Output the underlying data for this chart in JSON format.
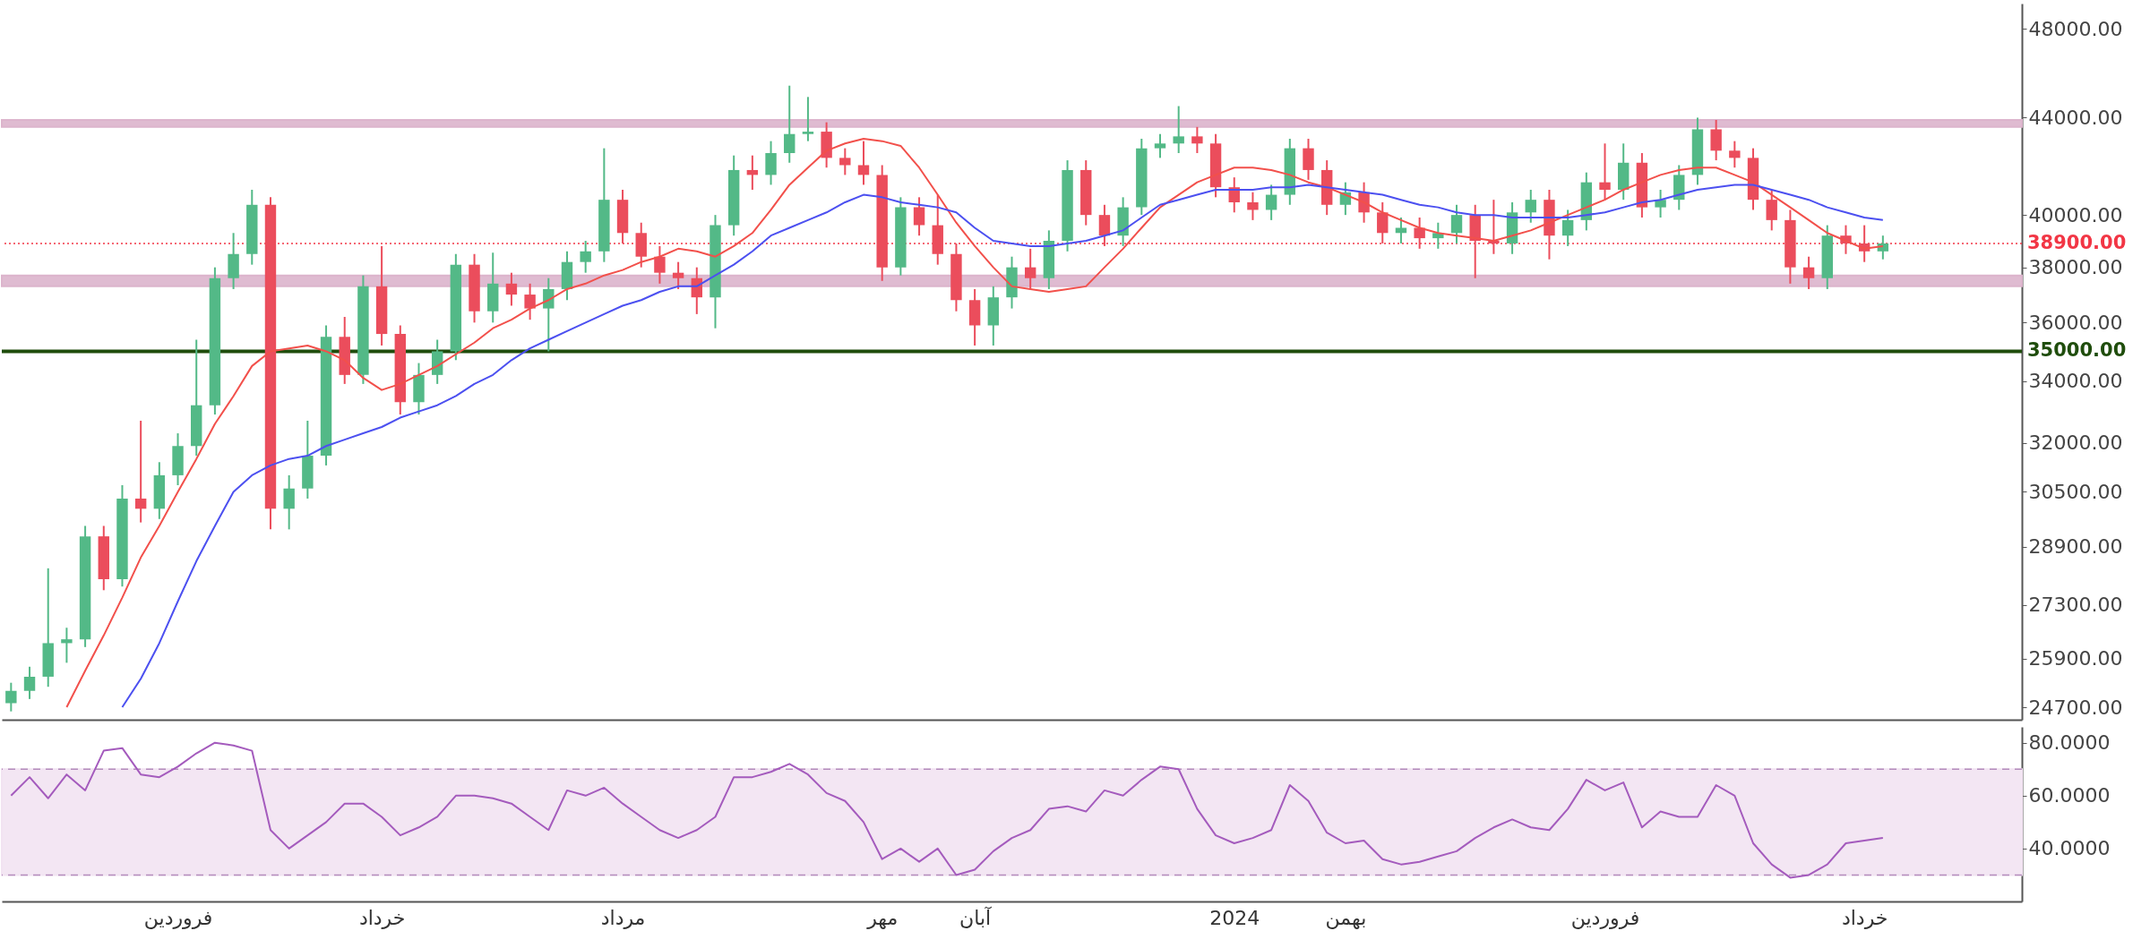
{
  "chart_data": [
    {
      "type": "candlestick",
      "tick_labels": "y",
      "log": true,
      "grid": false,
      "categories": [
        null,
        null,
        null,
        null,
        null,
        null,
        null,
        null,
        null,
        null,
        null,
        null,
        null,
        null,
        null,
        null,
        null,
        null,
        null,
        null,
        null,
        null,
        null,
        null,
        null,
        null,
        null,
        null,
        null,
        null,
        null,
        null,
        null,
        null,
        null,
        null,
        null,
        null,
        null,
        null,
        null,
        null,
        null,
        null,
        null,
        null,
        null,
        null,
        null,
        null,
        null,
        null,
        null,
        null,
        null,
        null,
        null,
        null,
        null,
        null,
        null,
        null,
        null,
        null,
        null,
        null,
        null,
        null,
        null,
        null,
        null,
        null,
        null,
        null,
        null,
        null,
        null,
        null,
        null,
        null,
        null,
        null,
        null,
        null,
        null,
        null,
        null,
        null,
        null,
        null,
        null,
        null,
        null,
        null,
        null,
        null,
        null,
        null,
        null,
        null,
        null,
        null,
        null,
        null,
        null,
        null,
        null,
        null,
        null
      ],
      "ohlc": [
        [
          24800,
          25300,
          24600,
          25100
        ],
        [
          25100,
          25700,
          24900,
          25450
        ],
        [
          25450,
          28300,
          25200,
          26300
        ],
        [
          26300,
          26700,
          25800,
          26400
        ],
        [
          26400,
          29500,
          26200,
          29200
        ],
        [
          29200,
          29500,
          27700,
          28000
        ],
        [
          28000,
          30700,
          27800,
          30300
        ],
        [
          30300,
          32700,
          29600,
          30000
        ],
        [
          30000,
          31400,
          29700,
          31000
        ],
        [
          31000,
          32300,
          30700,
          31900
        ],
        [
          31900,
          35400,
          31600,
          33200
        ],
        [
          33200,
          38000,
          32900,
          37600
        ],
        [
          37600,
          39300,
          37200,
          38500
        ],
        [
          38500,
          41000,
          38100,
          40400
        ],
        [
          40400,
          40700,
          29400,
          30000
        ],
        [
          30000,
          31000,
          29400,
          30600
        ],
        [
          30600,
          32700,
          30300,
          31600
        ],
        [
          31600,
          35900,
          31300,
          35500
        ],
        [
          35500,
          36200,
          33900,
          34200
        ],
        [
          34200,
          37700,
          33900,
          37300
        ],
        [
          37300,
          38800,
          35200,
          35600
        ],
        [
          35600,
          35900,
          32900,
          33300
        ],
        [
          33300,
          34600,
          32900,
          34200
        ],
        [
          34200,
          35400,
          33900,
          35000
        ],
        [
          35000,
          38500,
          34700,
          38100
        ],
        [
          38100,
          38500,
          36000,
          36400
        ],
        [
          36400,
          38550,
          36000,
          37400
        ],
        [
          37400,
          37800,
          36600,
          37000
        ],
        [
          37000,
          37400,
          36100,
          36500
        ],
        [
          36500,
          37600,
          35000,
          37200
        ],
        [
          37200,
          38600,
          36800,
          38200
        ],
        [
          38200,
          39000,
          37800,
          38600
        ],
        [
          38600,
          42700,
          38200,
          40600
        ],
        [
          40600,
          41000,
          38900,
          39300
        ],
        [
          39300,
          39700,
          38000,
          38400
        ],
        [
          38400,
          38800,
          37400,
          37800
        ],
        [
          37800,
          38200,
          37200,
          37600
        ],
        [
          37600,
          38000,
          36300,
          36900
        ],
        [
          36900,
          40000,
          35800,
          39600
        ],
        [
          39600,
          42400,
          39200,
          41800
        ],
        [
          41800,
          42400,
          41000,
          41600
        ],
        [
          41600,
          43000,
          41200,
          42500
        ],
        [
          42500,
          45400,
          42100,
          43300
        ],
        [
          43300,
          44900,
          43000,
          43400
        ],
        [
          43400,
          43800,
          41900,
          42300
        ],
        [
          42300,
          42700,
          41600,
          42000
        ],
        [
          42000,
          43000,
          41200,
          41600
        ],
        [
          41600,
          42000,
          37500,
          38000
        ],
        [
          38000,
          40700,
          37700,
          40300
        ],
        [
          40300,
          40700,
          39200,
          39600
        ],
        [
          39600,
          40800,
          38100,
          38500
        ],
        [
          38500,
          38900,
          36400,
          36800
        ],
        [
          36800,
          37200,
          35200,
          35900
        ],
        [
          35900,
          37300,
          35200,
          36900
        ],
        [
          36900,
          38400,
          36500,
          38000
        ],
        [
          38000,
          38700,
          37200,
          37600
        ],
        [
          37600,
          39400,
          37200,
          39000
        ],
        [
          39000,
          42200,
          38600,
          41800
        ],
        [
          41800,
          42200,
          39600,
          40000
        ],
        [
          40000,
          40400,
          38800,
          39200
        ],
        [
          39200,
          40700,
          38800,
          40300
        ],
        [
          40300,
          43100,
          40000,
          42700
        ],
        [
          42700,
          43300,
          42300,
          42900
        ],
        [
          42900,
          44500,
          42500,
          43200
        ],
        [
          43200,
          43600,
          42500,
          42900
        ],
        [
          42900,
          43300,
          40700,
          41100
        ],
        [
          41100,
          41500,
          40100,
          40500
        ],
        [
          40500,
          40900,
          39800,
          40200
        ],
        [
          40200,
          41200,
          39800,
          40800
        ],
        [
          40800,
          43100,
          40400,
          42700
        ],
        [
          42700,
          43100,
          41400,
          41800
        ],
        [
          41800,
          42200,
          40000,
          40400
        ],
        [
          40400,
          41300,
          40000,
          40900
        ],
        [
          40900,
          41300,
          39700,
          40100
        ],
        [
          40100,
          40500,
          38900,
          39300
        ],
        [
          39300,
          39900,
          38900,
          39500
        ],
        [
          39500,
          39900,
          38700,
          39100
        ],
        [
          39100,
          39700,
          38700,
          39300
        ],
        [
          39300,
          40400,
          38900,
          40000
        ],
        [
          40000,
          40400,
          37600,
          39000
        ],
        [
          39000,
          40600,
          38500,
          38900
        ],
        [
          38900,
          40500,
          38500,
          40100
        ],
        [
          40100,
          41000,
          39700,
          40600
        ],
        [
          40600,
          41000,
          38300,
          39200
        ],
        [
          39200,
          40200,
          38800,
          39800
        ],
        [
          39800,
          41700,
          39400,
          41300
        ],
        [
          41300,
          42900,
          40600,
          41000
        ],
        [
          41000,
          42900,
          40600,
          42100
        ],
        [
          42100,
          42500,
          39900,
          40300
        ],
        [
          40300,
          41000,
          39900,
          40600
        ],
        [
          40600,
          42000,
          40200,
          41600
        ],
        [
          41600,
          44000,
          41200,
          43500
        ],
        [
          43500,
          43900,
          42200,
          42600
        ],
        [
          42600,
          43000,
          41900,
          42300
        ],
        [
          42300,
          42700,
          40200,
          40600
        ],
        [
          40600,
          41000,
          39400,
          39800
        ],
        [
          39800,
          40200,
          37400,
          38000
        ],
        [
          38000,
          38400,
          37200,
          37600
        ],
        [
          37600,
          39600,
          37200,
          39200
        ],
        [
          39200,
          39600,
          38500,
          38900
        ],
        [
          38900,
          39600,
          38200,
          38600
        ],
        [
          38600,
          39200,
          38300,
          38900
        ],
        null,
        null,
        null,
        null,
        null,
        null,
        null
      ],
      "colors": [
        "#53b987",
        "#53b987",
        "#53b987",
        "#53b987",
        "#53b987",
        "#eb4d5c",
        "#53b987",
        "#eb4d5c",
        "#53b987",
        "#53b987",
        "#53b987",
        "#53b987",
        "#53b987",
        "#53b987",
        "#eb4d5c",
        "#53b987",
        "#53b987",
        "#53b987",
        "#eb4d5c",
        "#53b987",
        "#eb4d5c",
        "#eb4d5c",
        "#53b987",
        "#53b987",
        "#53b987",
        "#eb4d5c",
        "#53b987",
        "#eb4d5c",
        "#eb4d5c",
        "#53b987",
        "#53b987",
        "#53b987",
        "#53b987",
        "#eb4d5c",
        "#eb4d5c",
        "#eb4d5c",
        "#eb4d5c",
        "#eb4d5c",
        "#53b987",
        "#53b987",
        "#eb4d5c",
        "#53b987",
        "#53b987",
        "#53b987",
        "#eb4d5c",
        "#eb4d5c",
        "#eb4d5c",
        "#eb4d5c",
        "#53b987",
        "#eb4d5c",
        "#eb4d5c",
        "#eb4d5c",
        "#eb4d5c",
        "#53b987",
        "#53b987",
        "#eb4d5c",
        "#53b987",
        "#53b987",
        "#eb4d5c",
        "#eb4d5c",
        "#53b987",
        "#53b987",
        "#53b987",
        "#53b987",
        "#eb4d5c",
        "#eb4d5c",
        "#eb4d5c",
        "#eb4d5c",
        "#53b987",
        "#53b987",
        "#eb4d5c",
        "#eb4d5c",
        "#53b987",
        "#eb4d5c",
        "#eb4d5c",
        "#53b987",
        "#eb4d5c",
        "#53b987",
        "#53b987",
        "#eb4d5c",
        "#eb4d5c",
        "#53b987",
        "#53b987",
        "#eb4d5c",
        "#53b987",
        "#53b987",
        "#eb4d5c",
        "#53b987",
        "#eb4d5c",
        "#53b987",
        "#53b987",
        "#53b987",
        "#eb4d5c",
        "#eb4d5c",
        "#eb4d5c",
        "#eb4d5c",
        "#eb4d5c",
        "#eb4d5c",
        "#53b987",
        "#eb4d5c",
        "#eb4d5c",
        "#53b987",
        null,
        null,
        null,
        null,
        null,
        null,
        null
      ],
      "series": [
        {
          "type": "line",
          "color": "#f2504b",
          "values": [
            null,
            null,
            null,
            24700,
            25600,
            26500,
            27500,
            28600,
            29500,
            30500,
            31500,
            32600,
            33500,
            34500,
            35000,
            35100,
            35200,
            35000,
            34700,
            34100,
            33700,
            33900,
            34200,
            34500,
            34900,
            35300,
            35800,
            36100,
            36500,
            36800,
            37200,
            37400,
            37700,
            37900,
            38200,
            38400,
            38700,
            38600,
            38400,
            38800,
            39300,
            40200,
            41200,
            41900,
            42600,
            42900,
            43100,
            43000,
            42800,
            41900,
            40800,
            39700,
            38800,
            38000,
            37300,
            37200,
            37100,
            37200,
            37300,
            38000,
            38700,
            39500,
            40300,
            40800,
            41300,
            41600,
            41900,
            41900,
            41800,
            41600,
            41300,
            41100,
            40800,
            40500,
            40100,
            39800,
            39500,
            39300,
            39200,
            39100,
            39000,
            39200,
            39400,
            39700,
            40000,
            40300,
            40600,
            41000,
            41300,
            41600,
            41800,
            41900,
            41900,
            41600,
            41300,
            40800,
            40300,
            39800,
            39300,
            39000,
            38700,
            38800,
            null,
            null,
            null,
            null,
            null,
            null,
            null
          ]
        },
        {
          "type": "line",
          "color": "#4c50f0",
          "values": [
            null,
            null,
            null,
            null,
            null,
            null,
            24700,
            25400,
            26300,
            27400,
            28500,
            29500,
            30500,
            31000,
            31300,
            31500,
            31600,
            31900,
            32100,
            32300,
            32500,
            32800,
            33000,
            33200,
            33500,
            33900,
            34200,
            34700,
            35100,
            35400,
            35700,
            36000,
            36300,
            36600,
            36800,
            37100,
            37300,
            37300,
            37700,
            38100,
            38600,
            39200,
            39500,
            39800,
            40100,
            40500,
            40800,
            40700,
            40500,
            40400,
            40300,
            40100,
            39500,
            39000,
            38900,
            38800,
            38800,
            38900,
            39000,
            39200,
            39400,
            39900,
            40400,
            40600,
            40800,
            41000,
            41000,
            41000,
            41100,
            41100,
            41200,
            41100,
            41000,
            40900,
            40800,
            40600,
            40400,
            40300,
            40100,
            40000,
            40000,
            39900,
            39900,
            39900,
            39900,
            40000,
            40100,
            40300,
            40500,
            40600,
            40800,
            41000,
            41100,
            41200,
            41200,
            41000,
            40800,
            40600,
            40300,
            40100,
            39900,
            39800,
            null,
            null,
            null,
            null,
            null,
            null,
            null
          ]
        }
      ],
      "ylim": [
        24400,
        49200
      ],
      "yticks": [
        {
          "value": 24700,
          "label": "24700.00"
        },
        {
          "value": 25900,
          "label": "25900.00"
        },
        {
          "value": 27300,
          "label": "27300.00"
        },
        {
          "value": 28900,
          "label": "28900.00"
        },
        {
          "value": 30500,
          "label": "30500.00"
        },
        {
          "value": 32000,
          "label": "32000.00"
        },
        {
          "value": 34000,
          "label": "34000.00"
        },
        {
          "value": 36000,
          "label": "36000.00"
        },
        {
          "value": 38000,
          "label": "38000.00"
        },
        {
          "value": 40000,
          "label": "40000.00"
        },
        {
          "value": 44000,
          "label": "44000.00"
        },
        {
          "value": 48000,
          "label": "48000.00"
        }
      ],
      "bands": [
        {
          "axis": "y",
          "from": 43600,
          "to": 43900,
          "color": "#dcb4cc"
        },
        {
          "axis": "y",
          "from": 37300,
          "to": 37700,
          "color": "#dcb4cc"
        }
      ],
      "ref_lines": [
        {
          "axis": "y",
          "value": 35000,
          "label": "35000.00",
          "color": "#1f4d0c",
          "line_style": "solid"
        },
        {
          "axis": "y",
          "value": 38900,
          "label": "38900.00",
          "color": "#f23645",
          "line_style": "dotted"
        }
      ]
    },
    {
      "type": "line",
      "grid": false,
      "categories": [
        null,
        null,
        null,
        null,
        null,
        null,
        null,
        null,
        null,
        "فروردین",
        null,
        null,
        null,
        null,
        null,
        null,
        null,
        null,
        null,
        null,
        "خرداد",
        null,
        null,
        null,
        null,
        null,
        null,
        null,
        null,
        null,
        null,
        null,
        null,
        "مرداد",
        null,
        null,
        null,
        null,
        null,
        null,
        null,
        null,
        null,
        null,
        null,
        null,
        null,
        "مهر",
        null,
        null,
        null,
        null,
        "آبان",
        null,
        null,
        null,
        null,
        null,
        null,
        null,
        null,
        null,
        null,
        null,
        null,
        null,
        "2024",
        null,
        null,
        null,
        null,
        null,
        "بهمن",
        null,
        null,
        null,
        null,
        null,
        null,
        null,
        null,
        null,
        null,
        null,
        null,
        null,
        "فروردین",
        null,
        null,
        null,
        null,
        null,
        null,
        null,
        null,
        null,
        null,
        null,
        null,
        null,
        "خرداد",
        null,
        null,
        null,
        null,
        null,
        null,
        null,
        null
      ],
      "series": [
        {
          "color": "#a45bbd",
          "values": [
            60,
            67,
            59,
            68,
            62,
            77,
            78,
            68,
            67,
            71,
            76,
            80,
            79,
            77,
            47,
            40,
            45,
            50,
            57,
            57,
            52,
            45,
            48,
            52,
            60,
            60,
            59,
            57,
            52,
            47,
            62,
            60,
            63,
            57,
            52,
            47,
            44,
            47,
            52,
            67,
            67,
            69,
            72,
            68,
            61,
            58,
            50,
            36,
            40,
            35,
            40,
            30,
            32,
            39,
            44,
            47,
            55,
            56,
            54,
            62,
            60,
            66,
            71,
            70,
            55,
            45,
            42,
            44,
            47,
            64,
            58,
            46,
            42,
            43,
            36,
            34,
            35,
            37,
            39,
            44,
            48,
            51,
            48,
            47,
            55,
            66,
            62,
            65,
            48,
            54,
            52,
            52,
            64,
            60,
            42,
            34,
            29,
            30,
            34,
            42,
            43,
            44,
            null,
            null,
            null,
            null,
            null,
            null,
            null
          ]
        }
      ],
      "ylim": [
        20,
        86
      ],
      "yticks": [
        {
          "value": 40,
          "label": "40.0000"
        },
        {
          "value": 60,
          "label": "60.0000"
        },
        {
          "value": 80,
          "label": "80.0000"
        }
      ],
      "bands": [
        {
          "axis": "y",
          "from": 30,
          "to": 70,
          "color": "#f2e3f2"
        }
      ],
      "ref_lines": [
        {
          "axis": "y",
          "value": 70,
          "color": "#b48cbc",
          "line_style": "dashed"
        },
        {
          "axis": "y",
          "value": 30,
          "color": "#b48cbc",
          "line_style": "dashed"
        }
      ]
    }
  ]
}
